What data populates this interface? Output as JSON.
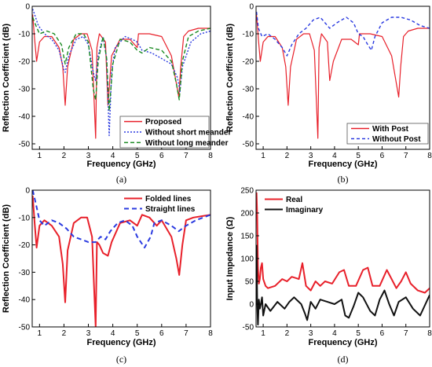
{
  "chart_data": [
    {
      "panel": "(a)",
      "type": "line",
      "xlabel": "Frequency (GHz)",
      "ylabel": "Reflection Coefficient (dB)",
      "xlim": [
        0.7,
        8
      ],
      "ylim": [
        -52,
        0
      ],
      "xticks": [
        "1",
        "2",
        "3",
        "4",
        "5",
        "6",
        "7",
        "8"
      ],
      "yticks": [
        "0",
        "-10",
        "-20",
        "-30",
        "-40",
        "-50"
      ],
      "legend_position": "bottom-right",
      "series": [
        {
          "name": "Proposed",
          "color": "#e8202a",
          "dash": "solid",
          "x": [
            0.72,
            0.8,
            0.88,
            1.0,
            1.2,
            1.5,
            1.8,
            1.95,
            2.05,
            2.15,
            2.4,
            2.7,
            2.95,
            3.15,
            3.3,
            3.35,
            3.45,
            3.7,
            3.8,
            3.95,
            4.3,
            4.7,
            5.0,
            5.05,
            5.2,
            5.5,
            6.0,
            6.4,
            6.6,
            6.7,
            6.78,
            6.9,
            7.1,
            7.5,
            8.0
          ],
          "y": [
            -3,
            -12,
            -20,
            -13,
            -11,
            -11,
            -15,
            -22,
            -36,
            -22,
            -12,
            -10,
            -10,
            -16,
            -48,
            -15,
            -10,
            -13,
            -36,
            -18,
            -12,
            -12,
            -15,
            -10,
            -10,
            -10,
            -11,
            -18,
            -28,
            -33,
            -22,
            -11,
            -9,
            -8,
            -8
          ]
        },
        {
          "name": "Without short meander",
          "color": "#2b3be0",
          "dash": "2,2",
          "x": [
            0.72,
            0.8,
            0.95,
            1.2,
            1.5,
            1.8,
            2.0,
            2.05,
            2.2,
            2.5,
            2.8,
            3.0,
            3.2,
            3.3,
            3.4,
            3.6,
            3.75,
            3.85,
            3.95,
            4.1,
            4.5,
            4.8,
            5.0,
            5.2,
            5.6,
            6.0,
            6.4,
            6.65,
            6.75,
            6.85,
            7.2,
            7.6,
            8.0
          ],
          "y": [
            -1,
            -3,
            -7,
            -10,
            -12,
            -16,
            -23,
            -24,
            -18,
            -12,
            -11,
            -14,
            -24,
            -27,
            -18,
            -11,
            -19,
            -47,
            -24,
            -15,
            -11,
            -12,
            -13,
            -16,
            -17,
            -19,
            -21,
            -26,
            -31,
            -22,
            -13,
            -10,
            -9
          ]
        },
        {
          "name": "Without long meander",
          "color": "#1a8a22",
          "dash": "5,3",
          "x": [
            0.72,
            0.85,
            1.0,
            1.3,
            1.6,
            1.9,
            2.05,
            2.2,
            2.5,
            2.8,
            3.0,
            3.2,
            3.3,
            3.4,
            3.6,
            3.75,
            3.85,
            4.0,
            4.3,
            4.7,
            5.0,
            5.2,
            5.5,
            6.0,
            6.4,
            6.6,
            6.72,
            6.85,
            7.1,
            7.5,
            8.0
          ],
          "y": [
            -4,
            -7,
            -10,
            -9,
            -10,
            -14,
            -21,
            -15,
            -10,
            -10,
            -13,
            -30,
            -34,
            -20,
            -11,
            -19,
            -38,
            -21,
            -12,
            -13,
            -16,
            -17,
            -15,
            -16,
            -20,
            -28,
            -34,
            -20,
            -11,
            -9,
            -8
          ]
        }
      ]
    },
    {
      "panel": "(b)",
      "type": "line",
      "xlabel": "Frequency (GHz)",
      "ylabel": "Reflection Coefficient (dB)",
      "xlim": [
        0.7,
        8
      ],
      "ylim": [
        -52,
        0
      ],
      "xticks": [
        "1",
        "2",
        "3",
        "4",
        "5",
        "6",
        "7",
        "8"
      ],
      "yticks": [
        "0",
        "-10",
        "-20",
        "-30",
        "-40",
        "-50"
      ],
      "legend_position": "bottom-right",
      "series": [
        {
          "name": "With Post",
          "color": "#e8202a",
          "dash": "solid",
          "x": [
            0.72,
            0.8,
            0.88,
            1.0,
            1.2,
            1.5,
            1.8,
            1.95,
            2.05,
            2.15,
            2.4,
            2.7,
            2.95,
            3.15,
            3.3,
            3.35,
            3.45,
            3.7,
            3.8,
            3.95,
            4.3,
            4.7,
            5.0,
            5.05,
            5.2,
            5.5,
            6.0,
            6.4,
            6.6,
            6.7,
            6.78,
            6.9,
            7.1,
            7.5,
            8.0
          ],
          "y": [
            -3,
            -12,
            -20,
            -13,
            -11,
            -11,
            -15,
            -22,
            -36,
            -22,
            -12,
            -10,
            -10,
            -16,
            -48,
            -15,
            -10,
            -13,
            -27,
            -20,
            -12,
            -12,
            -14,
            -10,
            -10,
            -10,
            -11,
            -18,
            -28,
            -33,
            -22,
            -11,
            -9,
            -8,
            -8
          ]
        },
        {
          "name": "Without Post",
          "color": "#2b3be0",
          "dash": "4,3",
          "x": [
            0.72,
            0.8,
            0.95,
            1.2,
            1.5,
            1.8,
            2.0,
            2.2,
            2.5,
            2.8,
            3.1,
            3.4,
            3.6,
            3.8,
            4.1,
            4.5,
            4.8,
            5.0,
            5.2,
            5.4,
            5.55,
            5.7,
            6.0,
            6.4,
            6.8,
            7.2,
            7.6,
            8.0
          ],
          "y": [
            -2,
            -8,
            -11,
            -10,
            -12,
            -15,
            -18,
            -14,
            -10,
            -8,
            -5,
            -4,
            -6,
            -8,
            -6,
            -4,
            -6,
            -10,
            -11,
            -14,
            -16,
            -11,
            -6,
            -4,
            -4,
            -5,
            -7,
            -8
          ]
        }
      ]
    },
    {
      "panel": "(c)",
      "type": "line",
      "xlabel": "Frequency (GHz)",
      "ylabel": "Reflection Coefficient (dB)",
      "xlim": [
        0.7,
        8
      ],
      "ylim": [
        -50,
        0
      ],
      "xticks": [
        "1",
        "2",
        "3",
        "4",
        "5",
        "6",
        "7",
        "8"
      ],
      "yticks": [
        "0",
        "-10",
        "-20",
        "-30",
        "-40",
        "-50"
      ],
      "legend_position": "top-right",
      "series": [
        {
          "name": "Folded lines",
          "color": "#e8202a",
          "dash": "solid",
          "x": [
            0.72,
            0.8,
            0.88,
            1.0,
            1.2,
            1.5,
            1.8,
            1.95,
            2.05,
            2.15,
            2.4,
            2.7,
            2.95,
            3.15,
            3.3,
            3.35,
            3.45,
            3.6,
            3.8,
            3.95,
            4.3,
            4.7,
            5.0,
            5.2,
            5.5,
            5.8,
            6.0,
            6.4,
            6.6,
            6.72,
            6.85,
            7.0,
            7.3,
            8.0
          ],
          "y": [
            -2,
            -12,
            -21,
            -13,
            -11,
            -13,
            -17,
            -27,
            -41,
            -22,
            -12,
            -10,
            -10,
            -17,
            -50,
            -19,
            -20,
            -23,
            -24,
            -19,
            -12,
            -11,
            -13,
            -9,
            -10,
            -13,
            -11,
            -17,
            -25,
            -31,
            -20,
            -11,
            -10,
            -9
          ]
        },
        {
          "name": "Straight lines",
          "color": "#2b3be0",
          "dash": "6,4",
          "x": [
            0.72,
            0.85,
            1.0,
            1.2,
            1.5,
            1.8,
            2.1,
            2.4,
            2.7,
            3.0,
            3.3,
            3.5,
            3.7,
            3.9,
            4.2,
            4.5,
            4.8,
            5.0,
            5.3,
            5.55,
            5.7,
            6.0,
            6.4,
            6.7,
            7.0,
            7.4,
            8.0
          ],
          "y": [
            0,
            -5,
            -11,
            -13,
            -11,
            -12,
            -14,
            -17,
            -18,
            -19,
            -19,
            -17,
            -18,
            -15,
            -12,
            -11,
            -13,
            -17,
            -21,
            -17,
            -12,
            -11,
            -13,
            -15,
            -13,
            -11,
            -9
          ]
        }
      ]
    },
    {
      "panel": "(d)",
      "type": "line",
      "xlabel": "Frequency (GHz)",
      "ylabel": "Input Impedance (Ω)",
      "xlim": [
        0.7,
        8
      ],
      "ylim": [
        -50,
        250
      ],
      "xticks": [
        "1",
        "2",
        "3",
        "4",
        "5",
        "6",
        "7",
        "8"
      ],
      "yticks": [
        "250",
        "200",
        "150",
        "100",
        "50",
        "0",
        "-50"
      ],
      "legend_position": "top-left",
      "series": [
        {
          "name": "Real",
          "color": "#e8202a",
          "dash": "solid",
          "x": [
            0.72,
            0.75,
            0.78,
            0.82,
            0.86,
            0.9,
            0.95,
            1.0,
            1.1,
            1.2,
            1.5,
            1.8,
            2.0,
            2.2,
            2.5,
            2.65,
            2.8,
            3.0,
            3.2,
            3.4,
            3.6,
            3.9,
            4.2,
            4.4,
            4.6,
            4.9,
            5.2,
            5.4,
            5.6,
            5.9,
            6.2,
            6.4,
            6.6,
            6.8,
            7.0,
            7.2,
            7.5,
            7.8,
            8.0
          ],
          "y": [
            245,
            190,
            80,
            45,
            55,
            80,
            90,
            55,
            40,
            35,
            40,
            55,
            50,
            60,
            55,
            90,
            40,
            30,
            50,
            40,
            50,
            45,
            70,
            75,
            40,
            40,
            75,
            80,
            40,
            40,
            75,
            55,
            35,
            50,
            70,
            45,
            30,
            25,
            35
          ]
        },
        {
          "name": "Imaginary",
          "color": "#111111",
          "dash": "solid",
          "x": [
            0.72,
            0.75,
            0.78,
            0.82,
            0.86,
            0.9,
            0.95,
            1.0,
            1.1,
            1.3,
            1.6,
            1.9,
            2.1,
            2.3,
            2.6,
            2.75,
            2.85,
            3.0,
            3.2,
            3.4,
            3.7,
            4.0,
            4.3,
            4.45,
            4.6,
            4.8,
            5.0,
            5.2,
            5.5,
            5.7,
            5.9,
            6.1,
            6.3,
            6.5,
            6.7,
            7.0,
            7.3,
            7.6,
            8.0
          ],
          "y": [
            130,
            0,
            -45,
            10,
            -10,
            0,
            15,
            -25,
            0,
            -15,
            5,
            -10,
            5,
            15,
            0,
            -20,
            -35,
            5,
            -10,
            10,
            5,
            0,
            10,
            -25,
            -30,
            -5,
            25,
            15,
            -15,
            -25,
            10,
            30,
            0,
            -25,
            5,
            15,
            -10,
            -25,
            20
          ]
        }
      ]
    }
  ],
  "captions": [
    "(a)",
    "(b)",
    "(c)",
    "(d)"
  ]
}
